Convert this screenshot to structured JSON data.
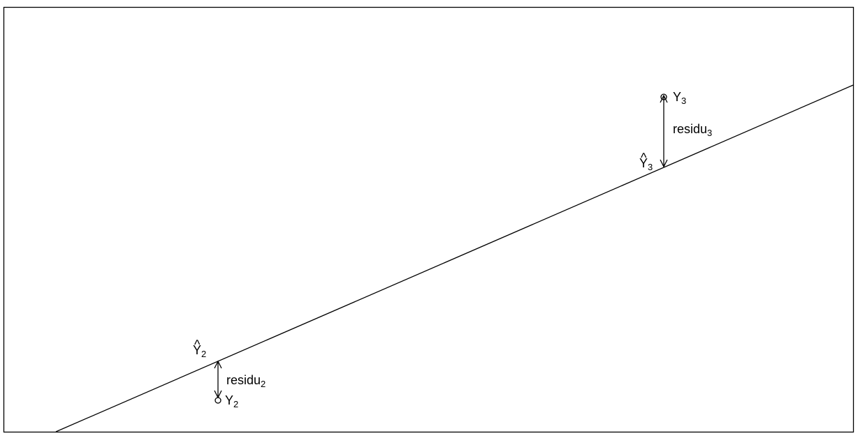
{
  "diagram": {
    "line_color": "#000000",
    "background": "#ffffff",
    "points": [
      {
        "observed_label": "Y",
        "observed_sub": "2",
        "fitted_label": "Y",
        "fitted_hat": "^",
        "fitted_sub": "2",
        "residual_label": "residu",
        "residual_sub": "2"
      },
      {
        "observed_label": "Y",
        "observed_sub": "3",
        "fitted_label": "Y",
        "fitted_hat": "^",
        "fitted_sub": "3",
        "residual_label": "residu",
        "residual_sub": "3"
      }
    ]
  }
}
